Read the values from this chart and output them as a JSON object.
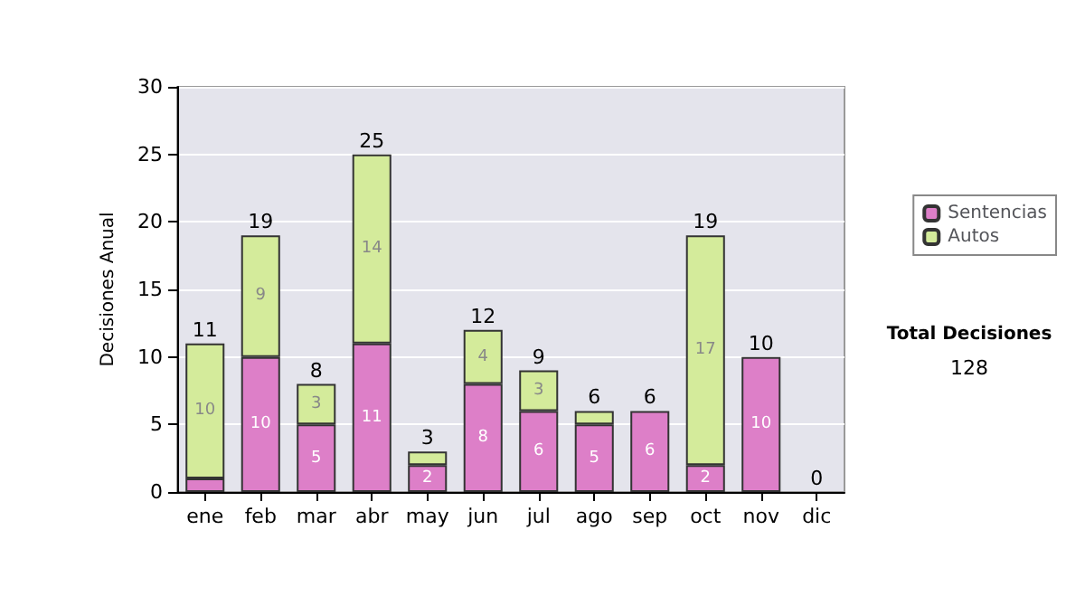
{
  "chart_data": {
    "type": "bar",
    "stacked": true,
    "ylabel": "Decisiones Anual",
    "categories": [
      "ene",
      "feb",
      "mar",
      "abr",
      "may",
      "jun",
      "jul",
      "ago",
      "sep",
      "oct",
      "nov",
      "dic"
    ],
    "series": [
      {
        "name": "Sentencias",
        "color": "#dd7fc8",
        "values": [
          1,
          10,
          5,
          11,
          2,
          8,
          6,
          5,
          6,
          2,
          10,
          0
        ],
        "value_labels": [
          null,
          "10",
          "5",
          "11",
          "2",
          "8",
          "6",
          "5",
          "6",
          "2",
          "10",
          null
        ]
      },
      {
        "name": "Autos",
        "color": "#d4eb9b",
        "values": [
          10,
          9,
          3,
          14,
          1,
          4,
          3,
          1,
          0,
          17,
          0,
          0
        ],
        "value_labels": [
          "10",
          "9",
          "3",
          "14",
          null,
          "4",
          "3",
          null,
          null,
          "17",
          null,
          null
        ]
      }
    ],
    "totals": [
      "11",
      "19",
      "8",
      "25",
      "3",
      "12",
      "9",
      "6",
      "6",
      "19",
      "10",
      "0"
    ],
    "ylim": [
      0,
      30
    ],
    "yticks": [
      0,
      5,
      10,
      15,
      20,
      25,
      30
    ],
    "grid": "y",
    "legend": "right",
    "annotations": [
      "Total Decisiones",
      "128"
    ]
  }
}
